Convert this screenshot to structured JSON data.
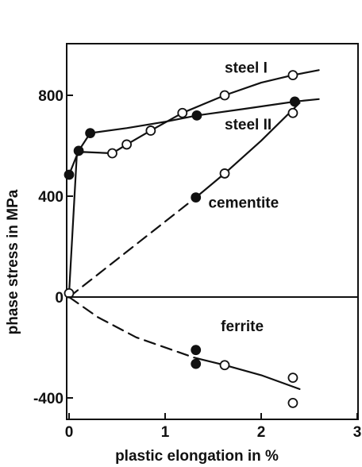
{
  "chart_data": {
    "type": "scatter",
    "xlabel": "plastic elongation in %",
    "ylabel": "phase stress in MPa",
    "xlim": [
      0,
      3
    ],
    "ylim": [
      -500,
      1000
    ],
    "xticks": [
      0,
      1,
      2,
      3
    ],
    "xtick_labels": [
      "0",
      "1",
      "2",
      "3"
    ],
    "yticks": [
      -400,
      0,
      400,
      800
    ],
    "ytick_labels": [
      "-400",
      "0",
      "400",
      "800"
    ],
    "grid": false,
    "legend": "none",
    "zero_line": true,
    "annotations": [
      {
        "text": "steel I",
        "x": 1.62,
        "y": 890
      },
      {
        "text": "steel II",
        "x": 1.62,
        "y": 665
      },
      {
        "text": "cementite",
        "x": 1.45,
        "y": 355
      },
      {
        "text": "ferrite",
        "x": 1.58,
        "y": -135
      }
    ],
    "points": [
      {
        "label": "steel I",
        "marker": "open",
        "x": [
          0.0,
          0.45,
          0.6,
          0.85,
          1.18,
          1.62,
          2.33
        ],
        "y": [
          15,
          570,
          605,
          660,
          730,
          800,
          880
        ]
      },
      {
        "label": "steel II",
        "marker": "filled",
        "x": [
          0.0,
          0.1,
          0.22,
          1.33,
          2.35
        ],
        "y": [
          485,
          580,
          650,
          720,
          775
        ]
      },
      {
        "label": "cementite",
        "marker": "mixed",
        "x": [
          1.32,
          1.62,
          2.33
        ],
        "y": [
          395,
          490,
          730
        ]
      },
      {
        "label": "ferrite",
        "marker": "filled",
        "x": [
          1.32,
          1.32
        ],
        "y": [
          -210,
          -265
        ]
      },
      {
        "label": "ferrite",
        "marker": "open",
        "x": [
          1.62,
          2.33,
          2.33
        ],
        "y": [
          -270,
          -320,
          -420
        ]
      }
    ],
    "curves": [
      {
        "label": "steel I",
        "style": "solid",
        "x": [
          0.0,
          0.08,
          0.15,
          0.45,
          0.6,
          0.85,
          1.18,
          1.62,
          2.0,
          2.33,
          2.6
        ],
        "y": [
          15,
          560,
          575,
          570,
          605,
          660,
          730,
          800,
          850,
          880,
          900
        ]
      },
      {
        "label": "steel II",
        "style": "solid",
        "x": [
          0.0,
          0.1,
          0.22,
          0.6,
          1.0,
          1.33,
          1.8,
          2.35,
          2.6
        ],
        "y": [
          485,
          580,
          650,
          670,
          695,
          720,
          745,
          775,
          785
        ]
      },
      {
        "label": "cementite",
        "style": "solid",
        "x": [
          1.32,
          1.62,
          2.0,
          2.4
        ],
        "y": [
          395,
          490,
          620,
          770
        ]
      },
      {
        "label": "cementite",
        "style": "dashed",
        "x": [
          0.0,
          1.32
        ],
        "y": [
          0,
          395
        ]
      },
      {
        "label": "ferrite",
        "style": "solid",
        "x": [
          1.3,
          1.62,
          2.0,
          2.4
        ],
        "y": [
          -240,
          -270,
          -310,
          -365
        ]
      },
      {
        "label": "ferrite",
        "style": "dashed",
        "x": [
          0.0,
          0.3,
          0.7,
          1.3
        ],
        "y": [
          0,
          -80,
          -160,
          -240
        ]
      }
    ]
  }
}
